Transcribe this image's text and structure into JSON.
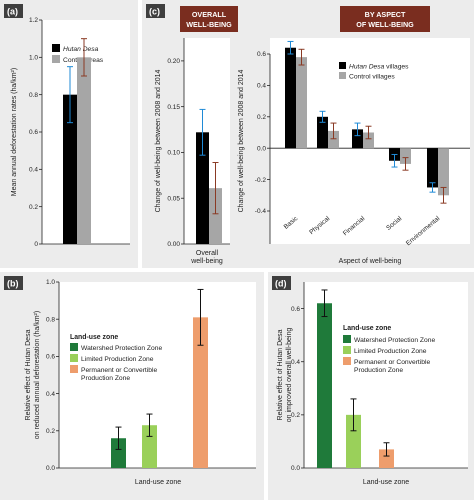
{
  "colors": {
    "hutan": "#000000",
    "control": "#a6a6a6",
    "err_blue": "#1f8ad6",
    "err_brown": "#8a3a24",
    "title_box": "#7a2d1f",
    "panel_bg": "#ececec",
    "green_dark": "#1f7a3a",
    "green_light": "#9ad05a",
    "orange": "#ee9d6c",
    "err_black": "#111111"
  },
  "chart_data": [
    {
      "panel": "a",
      "type": "bar",
      "ylabel": "Mean annual deforestation rates (ha/km²)",
      "ylim": [
        0,
        1.2
      ],
      "yticks": [
        "0",
        "0.2",
        "0.4",
        "0.6",
        "0.8",
        "1.0",
        "1.2"
      ],
      "legend": [
        "Hutan Desa",
        "Control areas"
      ],
      "series": [
        {
          "name": "Hutan Desa",
          "value": 0.8,
          "err": 0.15
        },
        {
          "name": "Control areas",
          "value": 1.0,
          "err": 0.1
        }
      ]
    },
    {
      "panel": "c-left",
      "type": "bar",
      "title": "OVERALL WELL-BEING",
      "ylabel": "Change of well-being between 2008 and 2014",
      "ylim": [
        0,
        0.2
      ],
      "yticks": [
        "0.00",
        "0.05",
        "0.10",
        "0.15",
        "0.20"
      ],
      "category": "Overall well-being",
      "series": [
        {
          "name": "Hutan Desa villages",
          "value": 0.122,
          "err": 0.025
        },
        {
          "name": "Control villages",
          "value": 0.061,
          "err": 0.028
        }
      ]
    },
    {
      "panel": "c-right",
      "type": "bar",
      "title": "BY ASPECT OF WELL-BEING",
      "ylabel": "Change of well-being between 2008 and 2014",
      "xlabel": "Aspect of well-being",
      "ylim": [
        -0.4,
        0.6
      ],
      "yticks": [
        "-0.4",
        "-0.2",
        "0.0",
        "0.2",
        "0.4",
        "0.6"
      ],
      "categories": [
        "Basic",
        "Physical",
        "Financial",
        "Social",
        "Environmental"
      ],
      "legend": [
        "Hutan Desa villages",
        "Control villages"
      ],
      "series": [
        {
          "name": "Hutan Desa villages",
          "values": [
            0.64,
            0.2,
            0.12,
            -0.08,
            -0.25
          ],
          "err": [
            0.04,
            0.035,
            0.04,
            0.04,
            0.03
          ]
        },
        {
          "name": "Control villages",
          "values": [
            0.58,
            0.11,
            0.1,
            -0.1,
            -0.3
          ],
          "err": [
            0.05,
            0.05,
            0.04,
            0.04,
            0.05
          ]
        }
      ]
    },
    {
      "panel": "b",
      "type": "bar",
      "ylabel": "Relative effect of Hutan Desa on reduced annual deforestation (ha/km²)",
      "xlabel": "Land-use zone",
      "ylim": [
        0,
        1.0
      ],
      "yticks": [
        "0.0",
        "0.2",
        "0.4",
        "0.6",
        "0.8",
        "1.0"
      ],
      "legend_title": "Land-use zone",
      "legend": [
        "Watershed Protection Zone",
        "Limited Production Zone",
        "Permanent or Convertible",
        "Production Zone"
      ],
      "values": [
        0.16,
        0.23,
        0.81
      ],
      "err": [
        0.06,
        0.06,
        0.15
      ]
    },
    {
      "panel": "d",
      "type": "bar",
      "ylabel": "Relative effect of Hutan Desa on improved overall well-being",
      "xlabel": "Land-use zone",
      "ylim": [
        0,
        0.7
      ],
      "yticks": [
        "0.0",
        "0.2",
        "0.4",
        "0.6"
      ],
      "legend_title": "Land-use zone",
      "legend": [
        "Watershed Protection Zone",
        "Limited Production Zone",
        "Permanent or Convertible",
        "Production Zone"
      ],
      "values": [
        0.62,
        0.2,
        0.07
      ],
      "err": [
        0.05,
        0.06,
        0.025
      ]
    }
  ],
  "labels": {
    "a": "(a)",
    "b": "(b)",
    "c": "(c)",
    "d": "(d)",
    "c_title_left_1": "OVERALL",
    "c_title_left_2": "WELL-BEING",
    "c_title_right_1": "BY ASPECT",
    "c_title_right_2": "OF WELL-BEING",
    "overall_1": "Overall",
    "overall_2": "well-being",
    "ylabel_a": "Mean annual deforestation rates (ha/km²)",
    "ylabel_c": "Change of well-being between 2008 and 2014",
    "xlabel_c": "Aspect of well-being",
    "ylabel_b_1": "Relative effect of Hutan Desa",
    "ylabel_b_2": "on reduced annual deforestation (ha/km²)",
    "ylabel_d_1": "Relative effect of Hutan Desa",
    "ylabel_d_2": "on improved overall well-being",
    "xlabel_bd": "Land-use zone",
    "legend_title": "Land-use zone",
    "hutan_desa": "Hutan Desa",
    "control_areas": "Control areas",
    "hutan_villages_rest": " villages",
    "control_villages": "Control villages",
    "zone1": "Watershed Protection Zone",
    "zone2": "Limited Production Zone",
    "zone3a": "Permanent or Convertible",
    "zone3b": "Production Zone"
  }
}
